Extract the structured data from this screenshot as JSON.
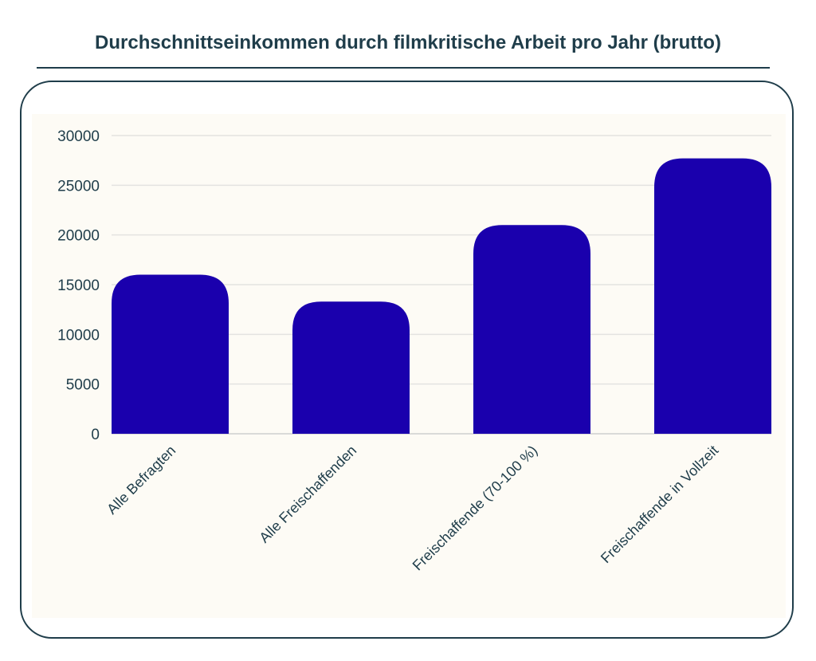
{
  "chart_data": {
    "type": "bar",
    "title": "Durchschnittseinkommen durch filmkritische Arbeit pro Jahr (brutto)",
    "categories": [
      "Alle Befragten",
      "Alle Freischaffenden",
      "Freischaffende (70-100 %)",
      "Freischaffende in Vollzeit"
    ],
    "values": [
      16000,
      13300,
      21000,
      27700
    ],
    "yticks": [
      "0",
      "5000",
      "10000",
      "15000",
      "20000",
      "25000",
      "30000"
    ],
    "ylim": [
      0,
      30000
    ],
    "xlabel": "",
    "ylabel": "",
    "grid": true,
    "bar_color": "#1a00ad",
    "plot_background": "#fdfbf5"
  }
}
